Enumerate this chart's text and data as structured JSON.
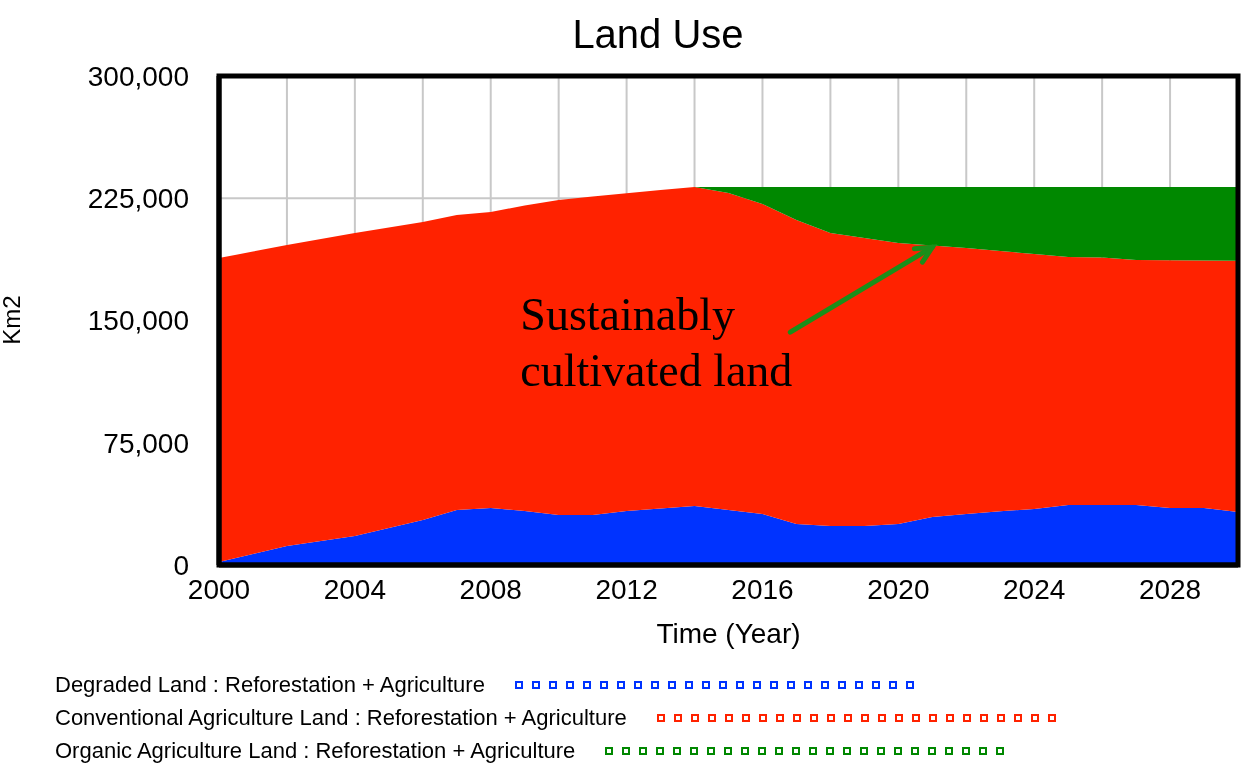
{
  "chart_data": {
    "type": "area",
    "title": "Land Use",
    "xlabel": "Time (Year)",
    "ylabel": "Km2",
    "stacked": true,
    "x": [
      2000,
      2001,
      2002,
      2003,
      2004,
      2005,
      2006,
      2007,
      2008,
      2009,
      2010,
      2011,
      2012,
      2013,
      2014,
      2015,
      2016,
      2017,
      2018,
      2019,
      2020,
      2021,
      2022,
      2023,
      2024,
      2025,
      2026,
      2027,
      2028,
      2029,
      2030
    ],
    "series": [
      {
        "name": "Degraded Land : Reforestation + Agriculture",
        "color": "#0033ff",
        "values": [
          1800,
          6700,
          11700,
          14800,
          17800,
          22700,
          27600,
          33700,
          35000,
          33100,
          30700,
          30700,
          33100,
          34700,
          36200,
          33800,
          31300,
          25200,
          23900,
          23900,
          25200,
          29400,
          31300,
          32900,
          34400,
          36800,
          36800,
          36800,
          35000,
          35000,
          32500
        ]
      },
      {
        "name": "Conventional Agriculture Land : Reforestation + Agriculture",
        "color": "#ff2200",
        "values": [
          186500,
          185600,
          184600,
          185200,
          185900,
          184300,
          182800,
          181000,
          181600,
          187400,
          193200,
          195300,
          194900,
          195300,
          195700,
          194400,
          190200,
          186500,
          179800,
          176700,
          172300,
          166600,
          163200,
          159700,
          156400,
          152200,
          151800,
          150300,
          152000,
          151800,
          154100
        ]
      },
      {
        "name": "Organic Agriculture Land : Reforestation + Agriculture",
        "color": "#008800",
        "values": [
          0,
          0,
          0,
          0,
          0,
          0,
          0,
          0,
          0,
          0,
          0,
          0,
          0,
          0,
          0,
          3700,
          10400,
          20200,
          28200,
          31300,
          34400,
          35900,
          37400,
          39300,
          41100,
          42900,
          43300,
          44800,
          44900,
          45100,
          45300
        ]
      }
    ],
    "xlim": [
      2000,
      2030
    ],
    "xticks": [
      2000,
      {
        "value": 2002,
        "label": null
      },
      2004,
      {
        "value": 2006,
        "label": null
      },
      2008,
      {
        "value": 2010,
        "label": null
      },
      2012,
      {
        "value": 2014,
        "label": null
      },
      2016,
      {
        "value": 2018,
        "label": null
      },
      2020,
      {
        "value": 2022,
        "label": null
      },
      2024,
      {
        "value": 2026,
        "label": null
      },
      2028,
      {
        "value": 2030,
        "label": null
      }
    ],
    "ylim": [
      0,
      300000
    ],
    "yticks": [
      0,
      {
        "value": 75000,
        "label": "75,000"
      },
      {
        "value": 150000,
        "label": "150,000"
      },
      {
        "value": 225000,
        "label": "225,000"
      },
      {
        "value": 300000,
        "label": "300,000"
      }
    ],
    "grid": true,
    "legend": "bottom",
    "annotations": [
      {
        "text": "Sustainably cultivated land",
        "x": 2021,
        "y": 195000
      }
    ]
  }
}
